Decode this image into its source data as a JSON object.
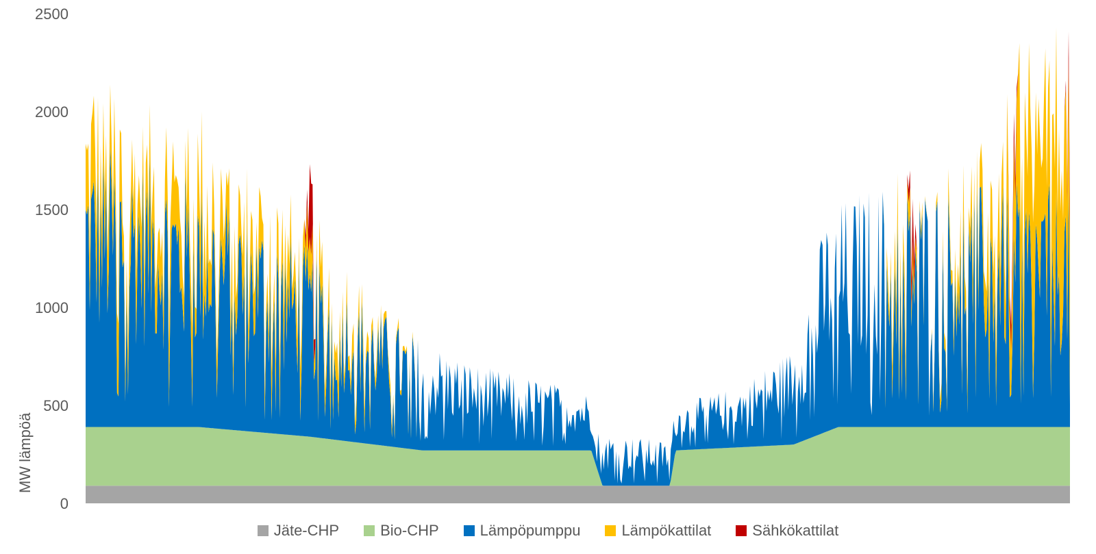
{
  "chart_data": {
    "type": "area",
    "stacked": true,
    "ylabel": "MW lämpöä",
    "xlabel": "",
    "ylim": [
      0,
      2500
    ],
    "yticks": [
      0,
      500,
      1000,
      1500,
      2000,
      2500
    ],
    "grid": false,
    "legend_position": "bottom",
    "hours": 8760,
    "series": [
      {
        "name": "Jäte-CHP",
        "color": "#a5a5a5",
        "note_values": "constant ~90 MW except around hours 4400-5200 where it remains ~90 MW",
        "profile": [
          [
            0,
            90
          ],
          [
            8760,
            90
          ]
        ]
      },
      {
        "name": "Bio-CHP",
        "color": "#a9d18e",
        "profile": [
          [
            0,
            300
          ],
          [
            300,
            300
          ],
          [
            1000,
            300
          ],
          [
            2000,
            250
          ],
          [
            3000,
            180
          ],
          [
            4500,
            180
          ],
          [
            4600,
            0
          ],
          [
            5200,
            0
          ],
          [
            5250,
            180
          ],
          [
            6300,
            210
          ],
          [
            6700,
            300
          ],
          [
            8760,
            300
          ]
        ]
      },
      {
        "name": "Lämpöpumppu",
        "color": "#0070c0",
        "profile": [
          [
            0,
            1180
          ],
          [
            300,
            1180
          ],
          [
            1200,
            1000
          ],
          [
            2000,
            780
          ],
          [
            2800,
            500
          ],
          [
            3500,
            350
          ],
          [
            4400,
            250
          ],
          [
            4600,
            220
          ],
          [
            5200,
            180
          ],
          [
            5800,
            250
          ],
          [
            6300,
            400
          ],
          [
            6600,
            900
          ],
          [
            7000,
            1000
          ],
          [
            7500,
            1000
          ],
          [
            8200,
            1000
          ],
          [
            8760,
            1000
          ]
        ]
      },
      {
        "name": "Lämpökattilat",
        "color": "#ffc000",
        "profile": [
          [
            0,
            350
          ],
          [
            300,
            350
          ],
          [
            1000,
            350
          ],
          [
            2000,
            200
          ],
          [
            2600,
            80
          ],
          [
            3000,
            0
          ],
          [
            7100,
            0
          ],
          [
            7200,
            250
          ],
          [
            7500,
            0
          ],
          [
            8000,
            300
          ],
          [
            8300,
            700
          ],
          [
            8760,
            800
          ]
        ]
      },
      {
        "name": "Sähkökattilat",
        "color": "#c00000",
        "profile": [
          [
            0,
            0
          ],
          [
            1950,
            0
          ],
          [
            2000,
            400
          ],
          [
            2050,
            0
          ],
          [
            7300,
            0
          ],
          [
            7350,
            250
          ],
          [
            7400,
            0
          ],
          [
            8200,
            0
          ],
          [
            8250,
            200
          ],
          [
            8300,
            0
          ],
          [
            8700,
            0
          ],
          [
            8760,
            150
          ]
        ]
      }
    ]
  }
}
